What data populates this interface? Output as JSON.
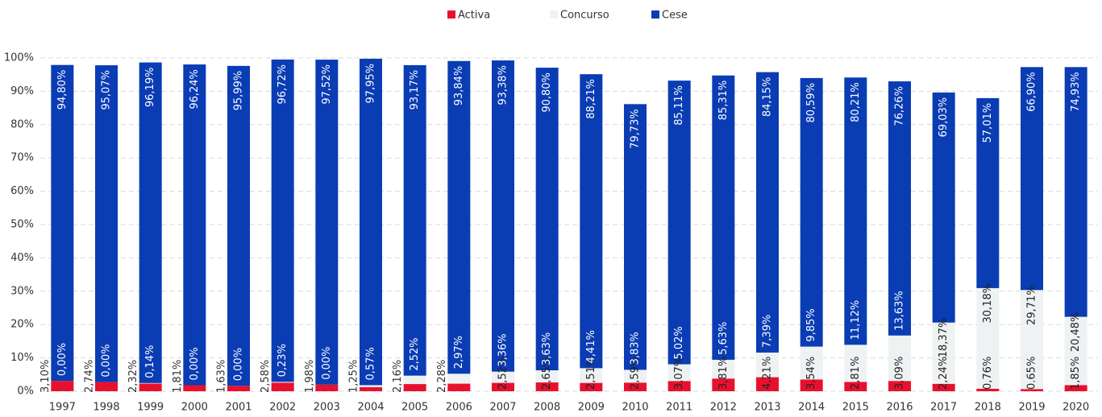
{
  "chart_data": {
    "type": "stacked_bar",
    "categories": [
      "1997",
      "1998",
      "1999",
      "2000",
      "2001",
      "2002",
      "2003",
      "2004",
      "2005",
      "2006",
      "2007",
      "2008",
      "2009",
      "2010",
      "2011",
      "2012",
      "2013",
      "2014",
      "2015",
      "2016",
      "2017",
      "2018",
      "2019",
      "2020"
    ],
    "series": [
      {
        "name": "Activa",
        "color": "#e8112d",
        "values": [
          3.1,
          2.74,
          2.32,
          1.81,
          1.63,
          2.58,
          1.98,
          1.25,
          2.16,
          2.28,
          2.52,
          2.65,
          2.51,
          2.59,
          3.07,
          3.81,
          4.21,
          3.54,
          2.81,
          3.09,
          2.24,
          0.76,
          0.65,
          1.85
        ],
        "value_labels": [
          "3,10%",
          "2,74%",
          "2,32%",
          "1,81%",
          "1,63%",
          "2,58%",
          "1,98%",
          "1,25%",
          "2,16%",
          "2,28%",
          "2,52%",
          "2,65%",
          "2,51%",
          "2,59%",
          "3,07%",
          "3,81%",
          "4,21%",
          "3,54%",
          "2,81%",
          "3,09%",
          "2,24%",
          "0,76%",
          "0.65%",
          "1,85%"
        ]
      },
      {
        "name": "Concurso",
        "color": "#eef2f3",
        "values": [
          0.0,
          0.0,
          0.14,
          0.0,
          0.0,
          0.23,
          0.0,
          0.57,
          2.52,
          2.97,
          3.36,
          3.63,
          4.41,
          3.83,
          5.02,
          5.63,
          7.39,
          9.85,
          11.12,
          13.63,
          18.37,
          30.18,
          29.71,
          20.48
        ],
        "value_labels": [
          "0,00%",
          "0,00%",
          "0,14%",
          "0,00%",
          "0,00%",
          "0,23%",
          "0,00%",
          "0,57%",
          "2,52%",
          "2,97%",
          "3,36%",
          "3,63%",
          "4,41%",
          "3,83%",
          "5,02%",
          "5,63%",
          "7,39%",
          "9,85%",
          "11,12%",
          "13,63%",
          "18,37%",
          "30,18%",
          "29,71%",
          "20,48%"
        ]
      },
      {
        "name": "Cese",
        "color": "#0a3cb4",
        "values": [
          94.8,
          95.07,
          96.19,
          96.24,
          95.99,
          96.72,
          97.52,
          97.95,
          93.17,
          93.84,
          93.38,
          90.8,
          88.21,
          79.73,
          85.11,
          85.31,
          84.15,
          80.59,
          80.21,
          76.26,
          69.03,
          57.01,
          66.9,
          74.93
        ],
        "value_labels": [
          "94,80%",
          "95,07%",
          "96,19%",
          "96,24%",
          "95,99%",
          "96,72%",
          "97,52%",
          "97,95%",
          "93,17%",
          "93,84%",
          "93,38%",
          "90,80%",
          "88,21%",
          "79,73%",
          "85,11%",
          "85,31%",
          "84,15%",
          "80,59%",
          "80,21%",
          "76,26%",
          "69,03%",
          "57,01%",
          "66,90%",
          "74,93%"
        ]
      }
    ],
    "ylim": [
      0,
      100
    ],
    "yticks": [
      {
        "value": 0,
        "label": "0%"
      },
      {
        "value": 10,
        "label": "10%"
      },
      {
        "value": 20,
        "label": "20%"
      },
      {
        "value": 30,
        "label": "30%"
      },
      {
        "value": 40,
        "label": "40%"
      },
      {
        "value": 50,
        "label": "50%"
      },
      {
        "value": 60,
        "label": "60%"
      },
      {
        "value": 70,
        "label": "70%"
      },
      {
        "value": 80,
        "label": "80%"
      },
      {
        "value": 90,
        "label": "90%"
      },
      {
        "value": 100,
        "label": "100%"
      }
    ],
    "grid": true,
    "legend": "top"
  }
}
